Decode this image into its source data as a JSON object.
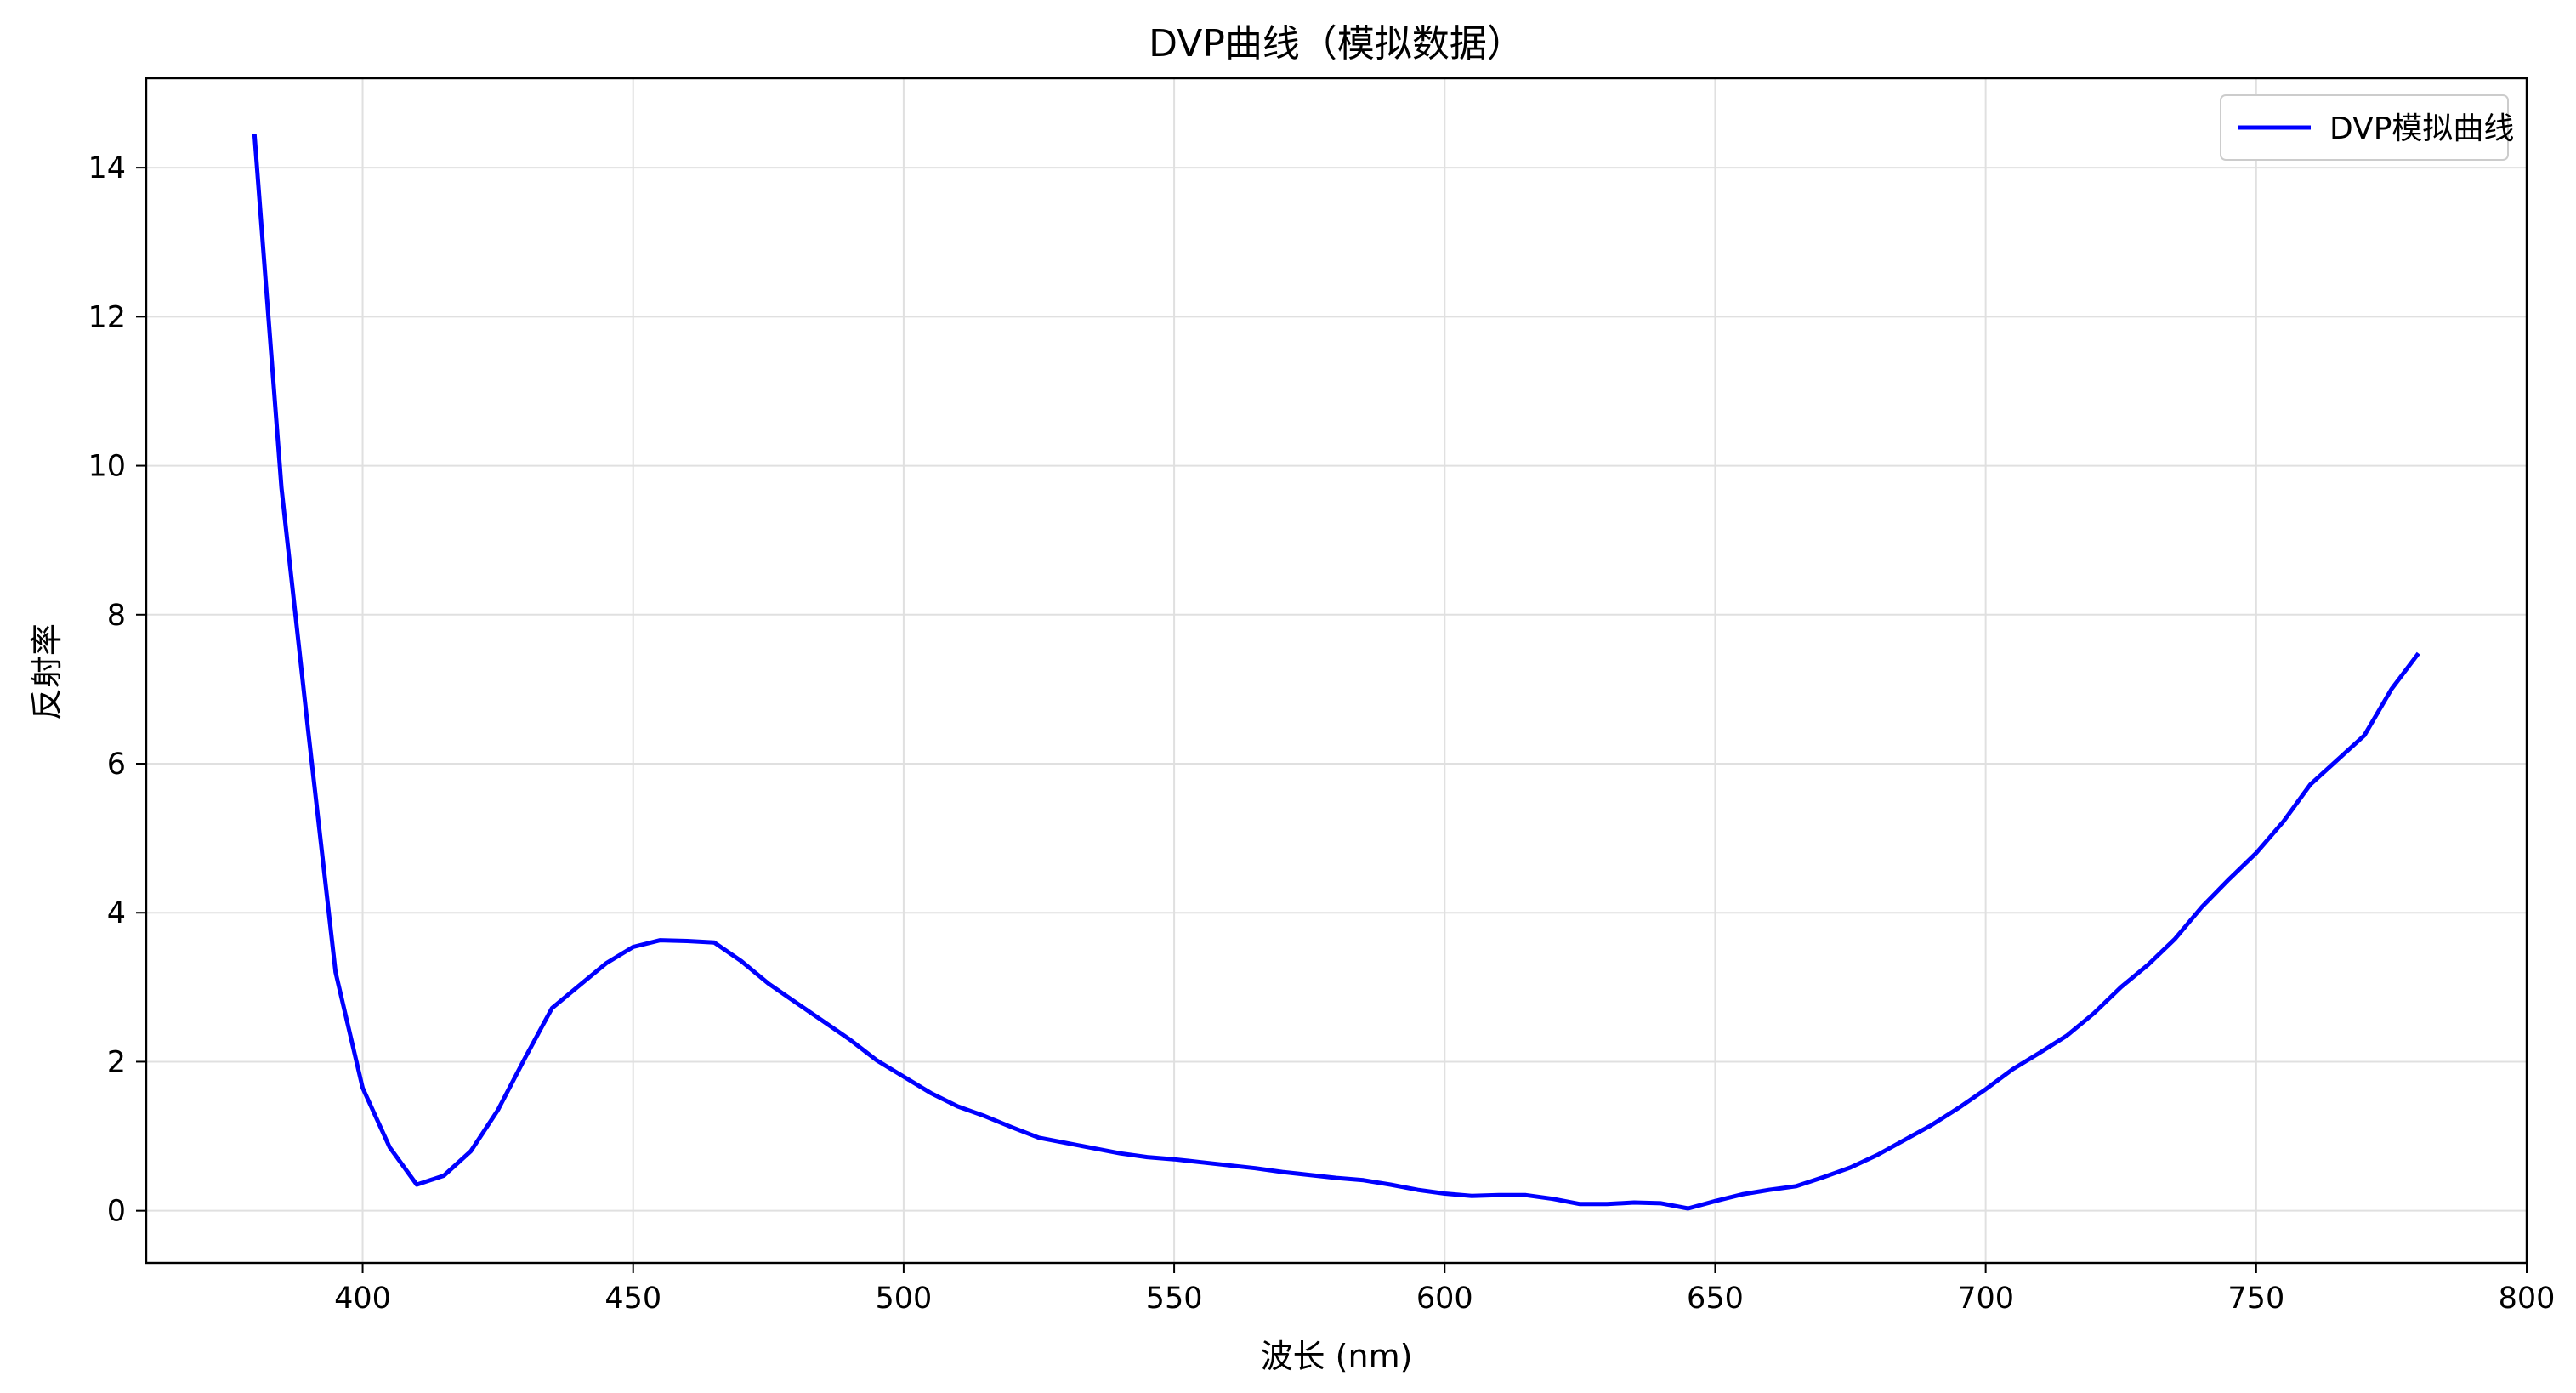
{
  "chart_data": {
    "type": "line",
    "title": "DVP曲线（模拟数据）",
    "xlabel": "波长 (nm)",
    "ylabel": "反射率",
    "xlim": [
      360,
      800
    ],
    "ylim": [
      -0.7,
      15.2
    ],
    "xticks": [
      400,
      450,
      500,
      550,
      600,
      650,
      700,
      750,
      800
    ],
    "yticks": [
      0,
      2,
      4,
      6,
      8,
      10,
      12,
      14
    ],
    "grid": true,
    "legend_position": "top-right",
    "series": [
      {
        "name": "DVP模拟曲线",
        "color": "#0000ff",
        "x": [
          380,
          385,
          390,
          395,
          400,
          405,
          410,
          415,
          420,
          425,
          430,
          435,
          440,
          445,
          450,
          455,
          460,
          465,
          470,
          475,
          480,
          485,
          490,
          495,
          500,
          505,
          510,
          515,
          520,
          525,
          530,
          535,
          540,
          545,
          550,
          555,
          560,
          565,
          570,
          575,
          580,
          585,
          590,
          595,
          600,
          605,
          610,
          615,
          620,
          625,
          630,
          635,
          640,
          645,
          650,
          655,
          660,
          665,
          670,
          675,
          680,
          685,
          690,
          695,
          700,
          705,
          710,
          715,
          720,
          725,
          730,
          735,
          740,
          745,
          750,
          755,
          760,
          765,
          770,
          775,
          780
        ],
        "y": [
          14.45,
          9.7,
          6.4,
          3.2,
          1.65,
          0.85,
          0.35,
          0.47,
          0.8,
          1.35,
          2.05,
          2.72,
          3.02,
          3.32,
          3.54,
          3.63,
          3.62,
          3.6,
          3.35,
          3.05,
          2.8,
          2.55,
          2.3,
          2.02,
          1.8,
          1.58,
          1.4,
          1.27,
          1.12,
          0.98,
          0.91,
          0.84,
          0.77,
          0.72,
          0.69,
          0.65,
          0.61,
          0.57,
          0.52,
          0.48,
          0.44,
          0.41,
          0.35,
          0.28,
          0.23,
          0.2,
          0.21,
          0.21,
          0.16,
          0.09,
          0.09,
          0.11,
          0.1,
          0.03,
          0.13,
          0.22,
          0.28,
          0.33,
          0.45,
          0.58,
          0.75,
          0.95,
          1.15,
          1.38,
          1.63,
          1.9,
          2.12,
          2.35,
          2.65,
          3.0,
          3.3,
          3.65,
          4.08,
          4.45,
          4.8,
          5.22,
          5.72,
          6.05,
          6.38,
          7.0,
          7.48
        ]
      }
    ]
  }
}
